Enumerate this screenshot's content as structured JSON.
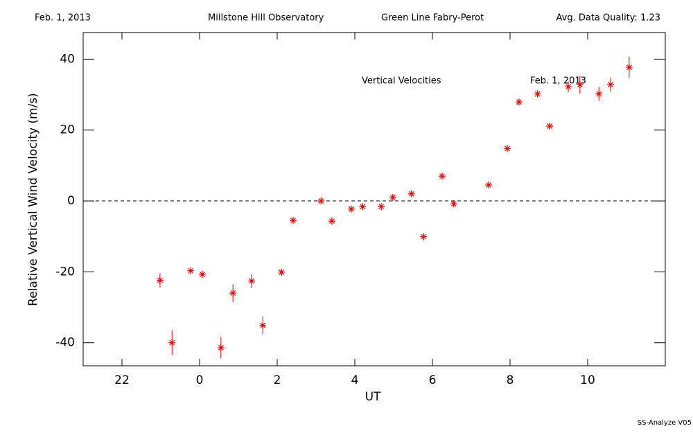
{
  "chart_data": {
    "type": "scatter",
    "header": [
      "Feb. 1, 2013",
      "Millstone Hill Observatory",
      "Green Line Fabry-Perot",
      "Avg. Data Quality: 1.23"
    ],
    "annotations": [
      "Vertical Velocities",
      "Feb. 1, 2013"
    ],
    "footer": "SS-Analyze V05",
    "xlabel": "UT",
    "ylabel": "Relative Vertical Wind Velocity (m/s)",
    "xlim": [
      -3,
      12
    ],
    "xticks": [
      {
        "value": -2,
        "label": "22"
      },
      0,
      2,
      4,
      6,
      8,
      10
    ],
    "ylim": [
      -46.5,
      47.5
    ],
    "yticks": [
      -40,
      -20,
      0,
      20,
      40
    ],
    "reference_line": 0,
    "color": "#e00000",
    "x": [
      -1.02,
      -0.71,
      -0.23,
      0.07,
      0.55,
      0.86,
      1.34,
      1.63,
      2.11,
      2.41,
      3.13,
      3.41,
      3.91,
      4.2,
      4.68,
      4.98,
      5.46,
      5.77,
      6.25,
      6.55,
      7.45,
      7.93,
      8.23,
      8.71,
      9.02,
      9.5,
      9.8,
      10.29,
      10.59,
      11.07
    ],
    "values": [
      -22.4,
      -40.0,
      -19.7,
      -20.7,
      -41.4,
      -26.0,
      -22.6,
      -35.1,
      -20.1,
      -5.5,
      0.0,
      -5.7,
      -2.3,
      -1.6,
      -1.6,
      1.0,
      2.0,
      -10.1,
      7.0,
      -0.8,
      4.5,
      14.8,
      27.9,
      30.2,
      21.1,
      32.2,
      32.8,
      30.2,
      32.8,
      37.7
    ],
    "errors": [
      2,
      3.5,
      1,
      1,
      3,
      2.5,
      2,
      2.5,
      1,
      1,
      1,
      1,
      1,
      1,
      1,
      1,
      1,
      1,
      1,
      1,
      1,
      1,
      1,
      1,
      1,
      1.5,
      2.5,
      2,
      2,
      3
    ]
  }
}
